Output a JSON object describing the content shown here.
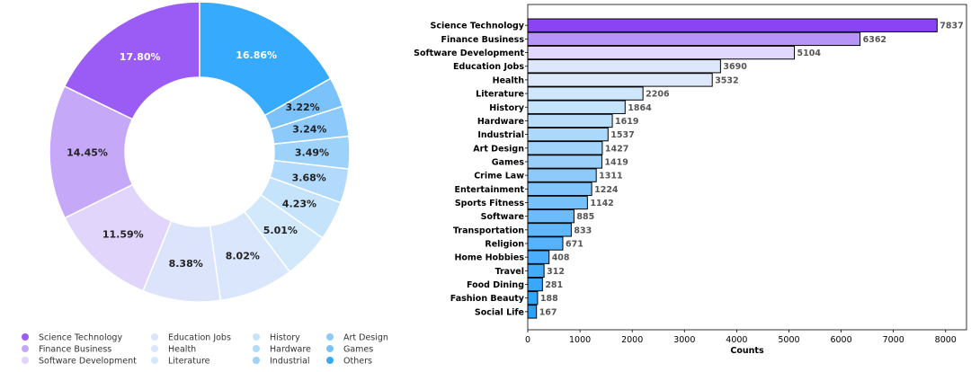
{
  "chart_data": [
    {
      "type": "pie",
      "variant": "donut",
      "categories": [
        "Science Technology",
        "Finance Business",
        "Software Development",
        "Education Jobs",
        "Health",
        "Literature",
        "History",
        "Hardware",
        "Industrial",
        "Art Design",
        "Games",
        "Others"
      ],
      "values": [
        17.8,
        14.45,
        11.59,
        8.38,
        8.02,
        5.01,
        4.23,
        3.68,
        3.49,
        3.24,
        3.22,
        16.86
      ],
      "labels": [
        "17.80%",
        "14.45%",
        "11.59%",
        "8.38%",
        "8.02%",
        "5.01%",
        "4.23%",
        "3.68%",
        "3.49%",
        "3.24%",
        "3.22%",
        "16.86%"
      ],
      "colors": [
        "#9b5cf6",
        "#c6a8f8",
        "#e1d5fb",
        "#dbe4fb",
        "#dae6fb",
        "#d2e9fc",
        "#c5e4fc",
        "#b1dafc",
        "#9dd2fb",
        "#8dcafb",
        "#7cc2fa",
        "#36aafd"
      ],
      "label_colors": [
        "#ffffff",
        "#222222",
        "#222222",
        "#222222",
        "#222222",
        "#222222",
        "#222222",
        "#222222",
        "#222222",
        "#222222",
        "#222222",
        "#ffffff"
      ],
      "legend_position": "bottom"
    },
    {
      "type": "bar",
      "orientation": "horizontal",
      "categories": [
        "Science Technology",
        "Finance Business",
        "Software Development",
        "Education Jobs",
        "Health",
        "Literature",
        "History",
        "Hardware",
        "Industrial",
        "Art Design",
        "Games",
        "Crime Law",
        "Entertainment",
        "Sports Fitness",
        "Software",
        "Transportation",
        "Religion",
        "Home Hobbies",
        "Travel",
        "Food Dining",
        "Fashion Beauty",
        "Social Life"
      ],
      "values": [
        7837,
        6362,
        5104,
        3690,
        3532,
        2206,
        1864,
        1619,
        1537,
        1427,
        1419,
        1311,
        1224,
        1142,
        885,
        833,
        671,
        408,
        312,
        281,
        188,
        167
      ],
      "colors": [
        "#8b44f5",
        "#b795f6",
        "#e2d8fb",
        "#dde7fb",
        "#dde8fb",
        "#cfe6fb",
        "#c4e3fc",
        "#b9defc",
        "#acd8fb",
        "#a1d4fb",
        "#98d0fb",
        "#8dcafb",
        "#81c5fb",
        "#76c0fb",
        "#6cbcfb",
        "#60b7fb",
        "#55b2fb",
        "#4aaefb",
        "#42abfc",
        "#39a8fc",
        "#30a5fc",
        "#28a2fc"
      ],
      "xlabel": "Counts",
      "ylabel": "",
      "xlim": [
        0,
        8400
      ],
      "xticks": [
        0,
        1000,
        2000,
        3000,
        4000,
        5000,
        6000,
        7000,
        8000
      ],
      "grid": false
    }
  ]
}
